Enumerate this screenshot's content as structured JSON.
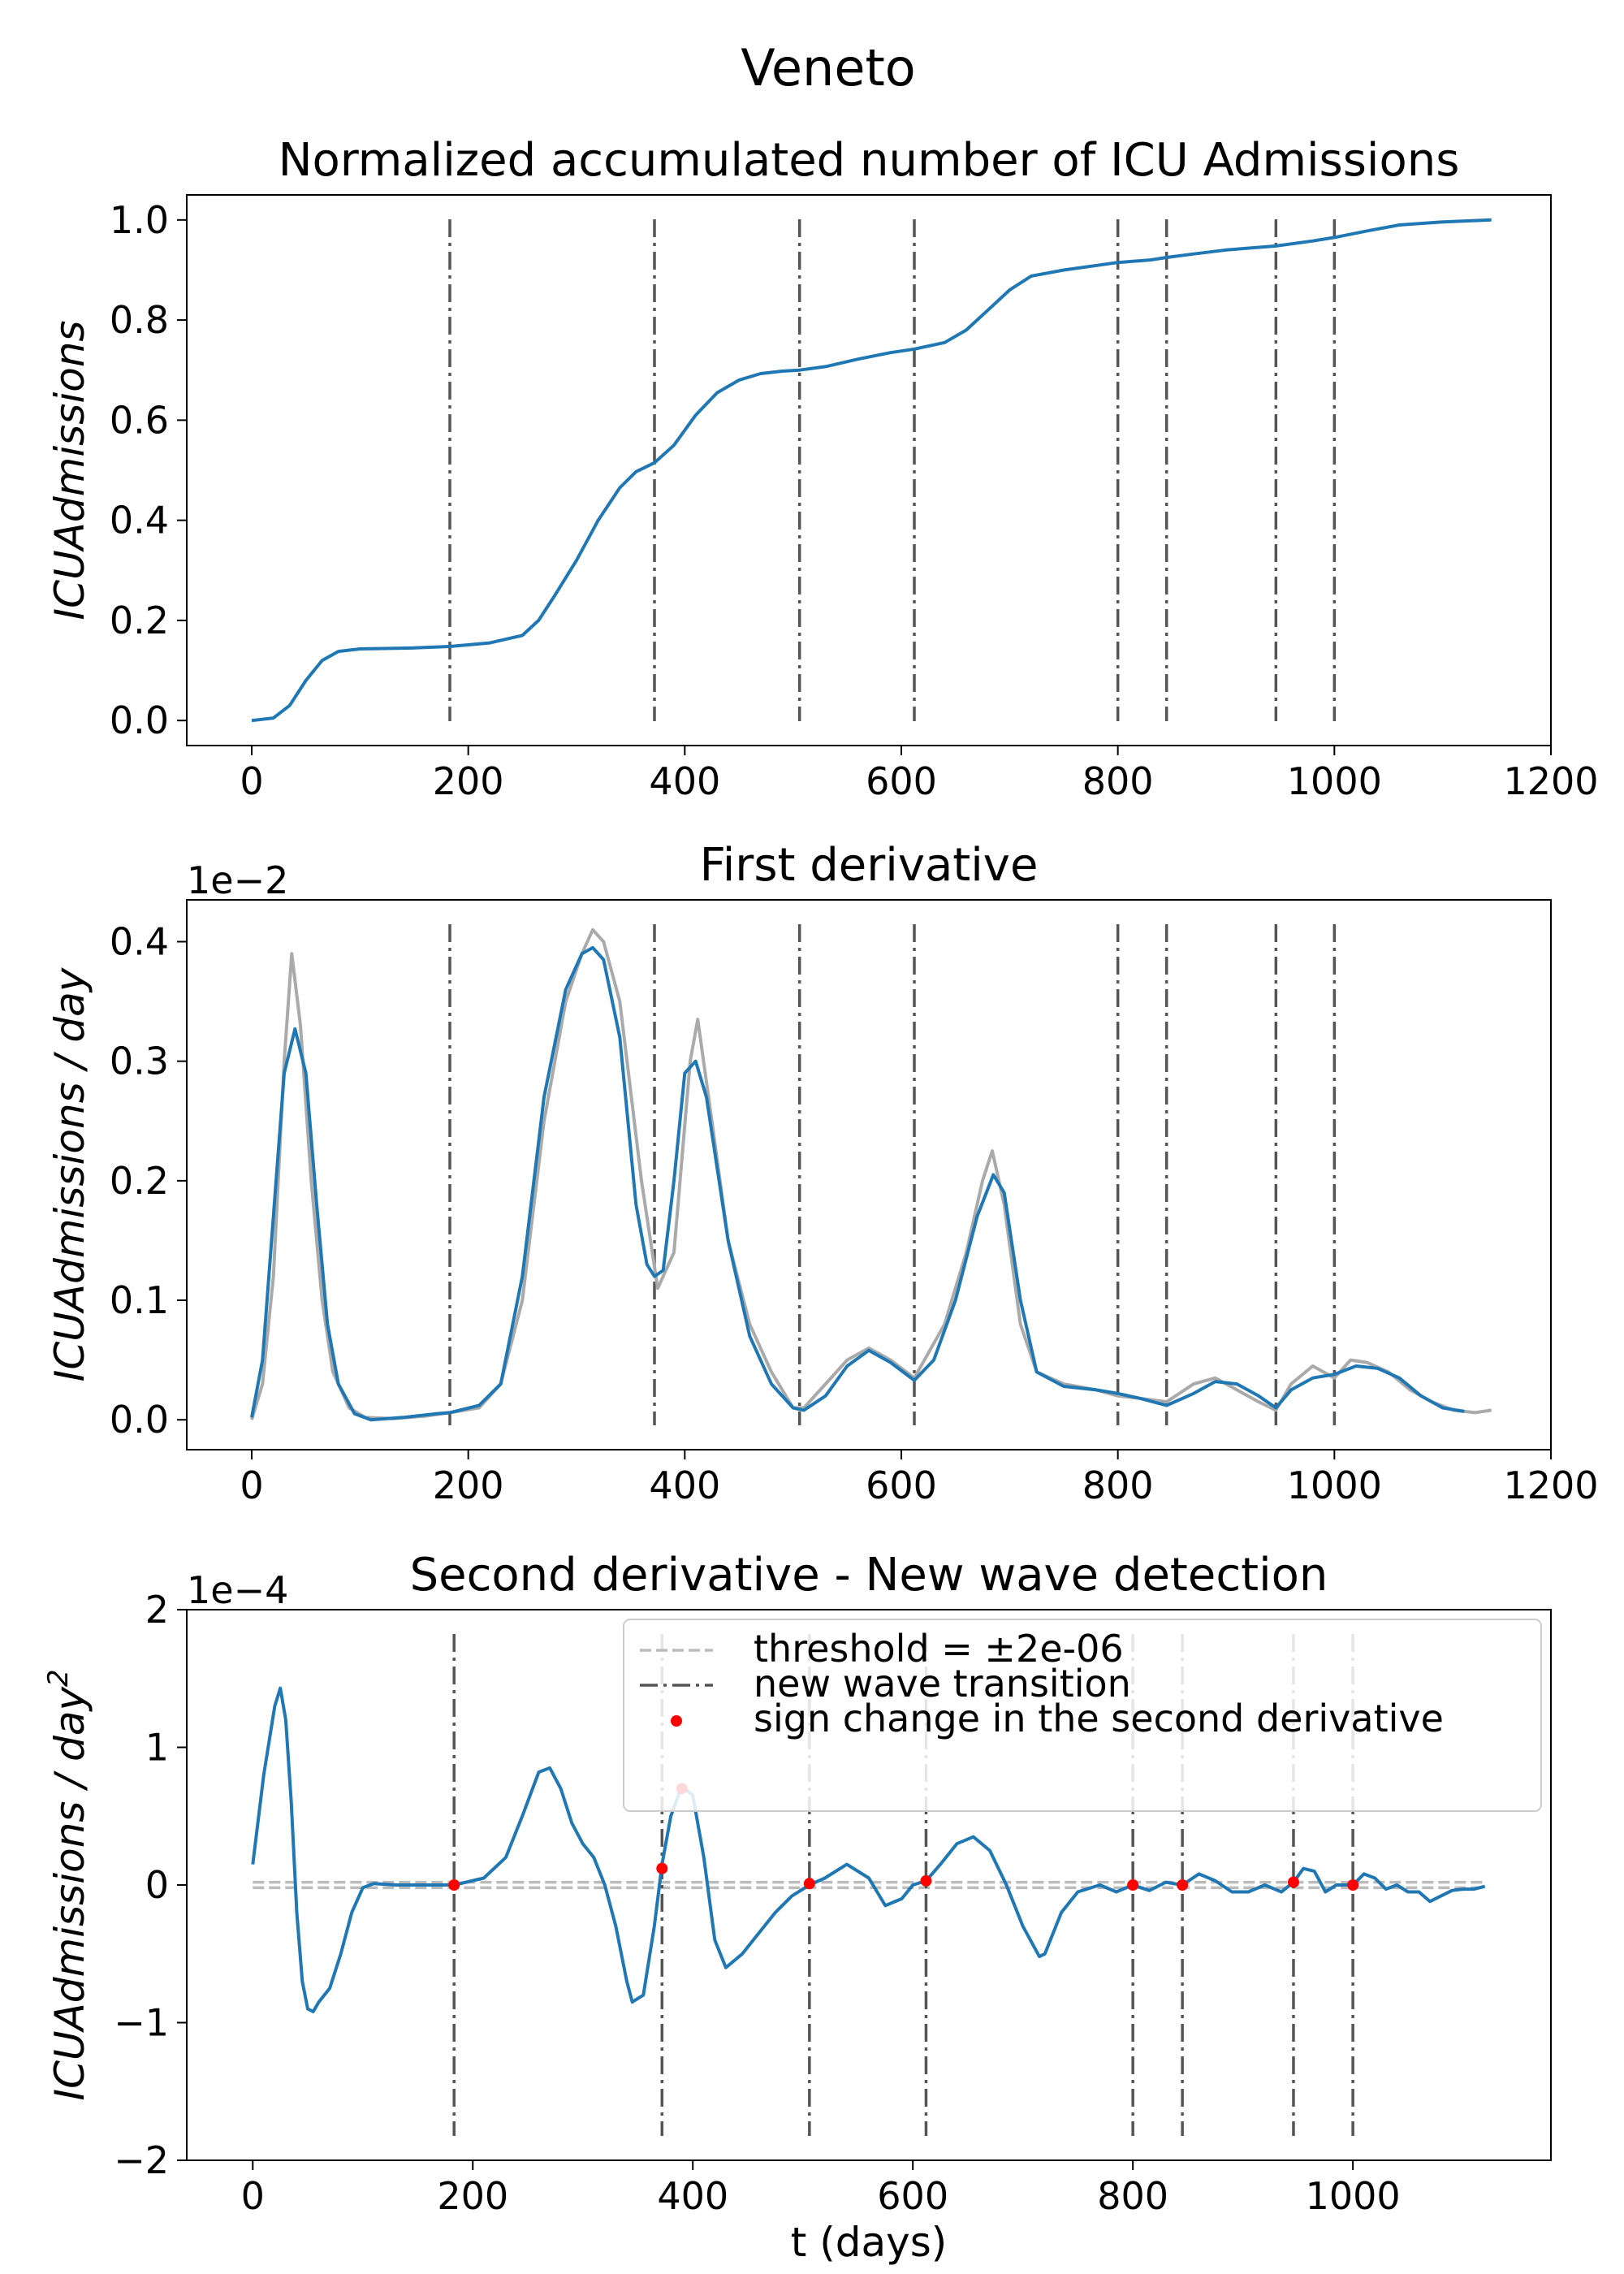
{
  "suptitle": "Veneto",
  "chart_data": [
    {
      "type": "line",
      "title": "Normalized accumulated number of ICU Admissions",
      "xlabel": "",
      "ylabel": "ICUAdmissions",
      "xlim": [
        -60,
        1200
      ],
      "ylim": [
        -0.05,
        1.05
      ],
      "xticks": [
        0,
        200,
        400,
        600,
        800,
        1000,
        1200
      ],
      "xtick_labels": [
        "0",
        "200",
        "400",
        "600",
        "800",
        "1000",
        "1200"
      ],
      "yticks": [
        0.0,
        0.2,
        0.4,
        0.6,
        0.8,
        1.0
      ],
      "ytick_labels": [
        "0.0",
        "0.2",
        "0.4",
        "0.6",
        "0.8",
        "1.0"
      ],
      "offset_text": "",
      "transitions": [
        183,
        372,
        506,
        612,
        800,
        845,
        946,
        1000
      ],
      "series": [
        {
          "color": "#1f77b4",
          "x": [
            0,
            20,
            35,
            50,
            65,
            80,
            100,
            150,
            183,
            220,
            250,
            265,
            280,
            300,
            320,
            340,
            355,
            372,
            390,
            410,
            430,
            450,
            470,
            490,
            506,
            530,
            560,
            590,
            612,
            640,
            660,
            680,
            700,
            720,
            750,
            800,
            830,
            845,
            870,
            900,
            946,
            980,
            1000,
            1030,
            1060,
            1100,
            1145
          ],
          "y": [
            0,
            0.005,
            0.03,
            0.08,
            0.12,
            0.138,
            0.143,
            0.145,
            0.148,
            0.155,
            0.17,
            0.2,
            0.25,
            0.32,
            0.4,
            0.465,
            0.497,
            0.515,
            0.55,
            0.61,
            0.655,
            0.68,
            0.693,
            0.698,
            0.7,
            0.707,
            0.722,
            0.735,
            0.742,
            0.755,
            0.78,
            0.82,
            0.86,
            0.888,
            0.9,
            0.915,
            0.92,
            0.925,
            0.932,
            0.94,
            0.948,
            0.958,
            0.965,
            0.978,
            0.99,
            0.996,
            1.0
          ]
        }
      ]
    },
    {
      "type": "line",
      "title": "First derivative",
      "xlabel": "",
      "ylabel": "ICUAdmissions / day",
      "xlim": [
        -60,
        1200
      ],
      "ylim": [
        -0.025,
        0.435
      ],
      "xticks": [
        0,
        200,
        400,
        600,
        800,
        1000,
        1200
      ],
      "xtick_labels": [
        "0",
        "200",
        "400",
        "600",
        "800",
        "1000",
        "1200"
      ],
      "yticks": [
        0.0,
        0.1,
        0.2,
        0.3,
        0.4
      ],
      "ytick_labels": [
        "0.0",
        "0.1",
        "0.2",
        "0.3",
        "0.4"
      ],
      "offset_text": "1e−2",
      "transitions": [
        183,
        372,
        506,
        612,
        800,
        845,
        946,
        1000
      ],
      "series": [
        {
          "color": "#aaaaaa",
          "x": [
            0,
            10,
            20,
            30,
            37,
            45,
            55,
            65,
            75,
            90,
            105,
            130,
            160,
            183,
            210,
            230,
            250,
            270,
            290,
            305,
            315,
            325,
            340,
            360,
            375,
            390,
            405,
            412,
            425,
            440,
            460,
            480,
            500,
            510,
            530,
            550,
            570,
            590,
            612,
            640,
            660,
            675,
            684,
            695,
            710,
            725,
            750,
            780,
            800,
            820,
            845,
            870,
            890,
            910,
            930,
            946,
            960,
            980,
            1000,
            1015,
            1030,
            1050,
            1070,
            1090,
            1110,
            1130,
            1145
          ],
          "y": [
            0.0,
            0.03,
            0.12,
            0.3,
            0.39,
            0.33,
            0.2,
            0.1,
            0.04,
            0.01,
            0.002,
            0.001,
            0.003,
            0.006,
            0.01,
            0.03,
            0.1,
            0.25,
            0.35,
            0.39,
            0.41,
            0.4,
            0.35,
            0.2,
            0.11,
            0.14,
            0.3,
            0.335,
            0.25,
            0.15,
            0.08,
            0.04,
            0.01,
            0.01,
            0.03,
            0.05,
            0.06,
            0.05,
            0.035,
            0.08,
            0.14,
            0.2,
            0.225,
            0.18,
            0.08,
            0.04,
            0.03,
            0.025,
            0.02,
            0.018,
            0.015,
            0.03,
            0.035,
            0.025,
            0.015,
            0.008,
            0.03,
            0.045,
            0.035,
            0.05,
            0.048,
            0.04,
            0.025,
            0.015,
            0.008,
            0.006,
            0.008
          ]
        },
        {
          "color": "#1f77b4",
          "x": [
            0,
            10,
            20,
            30,
            40,
            50,
            60,
            70,
            80,
            95,
            110,
            140,
            170,
            183,
            210,
            230,
            250,
            270,
            290,
            305,
            315,
            325,
            340,
            355,
            365,
            372,
            380,
            390,
            400,
            410,
            420,
            440,
            460,
            480,
            500,
            510,
            530,
            550,
            570,
            590,
            612,
            630,
            650,
            670,
            685,
            695,
            710,
            725,
            750,
            780,
            800,
            820,
            845,
            870,
            890,
            910,
            930,
            946,
            960,
            980,
            1000,
            1020,
            1040,
            1060,
            1080,
            1100,
            1120
          ],
          "y": [
            0.002,
            0.05,
            0.17,
            0.29,
            0.327,
            0.29,
            0.18,
            0.08,
            0.03,
            0.005,
            0.0,
            0.002,
            0.005,
            0.006,
            0.012,
            0.03,
            0.12,
            0.27,
            0.36,
            0.39,
            0.395,
            0.385,
            0.32,
            0.18,
            0.13,
            0.12,
            0.125,
            0.2,
            0.29,
            0.3,
            0.27,
            0.15,
            0.07,
            0.03,
            0.01,
            0.008,
            0.02,
            0.045,
            0.058,
            0.048,
            0.033,
            0.05,
            0.1,
            0.17,
            0.205,
            0.19,
            0.1,
            0.04,
            0.028,
            0.025,
            0.022,
            0.018,
            0.012,
            0.022,
            0.032,
            0.03,
            0.02,
            0.01,
            0.025,
            0.035,
            0.038,
            0.045,
            0.043,
            0.035,
            0.02,
            0.01,
            0.007
          ]
        }
      ]
    },
    {
      "type": "line",
      "title": "Second derivative - New wave detection",
      "xlabel": "t (days)",
      "ylabel": "ICUAdmissions / day",
      "ylabel_superscript": "2",
      "xlim": [
        -60,
        1180
      ],
      "ylim": [
        -2,
        2
      ],
      "xticks": [
        0,
        200,
        400,
        600,
        800,
        1000
      ],
      "xtick_labels": [
        "0",
        "200",
        "400",
        "600",
        "800",
        "1000"
      ],
      "yticks": [
        -2,
        -1,
        0,
        1,
        2
      ],
      "ytick_labels": [
        "−2",
        "−1",
        "0",
        "1",
        "2"
      ],
      "offset_text": "1e−4",
      "threshold": 0.02,
      "transitions": [
        183,
        372,
        506,
        612,
        800,
        845,
        946,
        1000
      ],
      "sign_changes": {
        "x": [
          183,
          372,
          390,
          506,
          612,
          800,
          845,
          946,
          1000
        ],
        "y": [
          0.0,
          0.12,
          0.7,
          0.01,
          0.03,
          0.0,
          0.0,
          0.02,
          0.0
        ]
      },
      "series": [
        {
          "color": "#1f77b4",
          "x": [
            0,
            10,
            20,
            25,
            30,
            35,
            40,
            45,
            50,
            55,
            60,
            70,
            80,
            90,
            100,
            110,
            130,
            160,
            183,
            210,
            230,
            245,
            260,
            270,
            280,
            290,
            300,
            310,
            320,
            330,
            340,
            345,
            355,
            365,
            372,
            380,
            390,
            400,
            410,
            420,
            430,
            445,
            460,
            475,
            490,
            506,
            520,
            540,
            560,
            575,
            590,
            600,
            612,
            625,
            640,
            655,
            670,
            685,
            700,
            715,
            720,
            735,
            750,
            770,
            785,
            800,
            815,
            830,
            845,
            860,
            875,
            890,
            905,
            920,
            935,
            946,
            955,
            965,
            975,
            985,
            1000,
            1010,
            1020,
            1030,
            1040,
            1050,
            1060,
            1070,
            1080,
            1090,
            1100,
            1110,
            1120
          ],
          "y": [
            0.15,
            0.8,
            1.3,
            1.43,
            1.2,
            0.6,
            -0.2,
            -0.7,
            -0.9,
            -0.92,
            -0.85,
            -0.75,
            -0.5,
            -0.2,
            -0.02,
            0.01,
            0.0,
            0.0,
            0.0,
            0.05,
            0.2,
            0.5,
            0.82,
            0.85,
            0.7,
            0.45,
            0.3,
            0.2,
            0.0,
            -0.3,
            -0.7,
            -0.85,
            -0.8,
            -0.3,
            0.15,
            0.5,
            0.72,
            0.65,
            0.2,
            -0.4,
            -0.6,
            -0.5,
            -0.35,
            -0.2,
            -0.08,
            0.0,
            0.05,
            0.15,
            0.05,
            -0.15,
            -0.1,
            0.0,
            0.03,
            0.15,
            0.3,
            0.35,
            0.25,
            0.0,
            -0.3,
            -0.52,
            -0.5,
            -0.2,
            -0.05,
            0.0,
            -0.05,
            0.0,
            -0.04,
            0.02,
            0.0,
            0.08,
            0.03,
            -0.05,
            -0.05,
            0.0,
            -0.05,
            0.02,
            0.12,
            0.1,
            -0.05,
            0.0,
            0.0,
            0.08,
            0.05,
            -0.03,
            0.0,
            -0.05,
            -0.05,
            -0.12,
            -0.08,
            -0.04,
            -0.03,
            -0.03,
            -0.01
          ]
        }
      ],
      "legend": {
        "placement": "upper right",
        "entries": [
          "threshold = ±2e-06",
          "new wave transition",
          "sign change in the second derivative"
        ]
      }
    }
  ]
}
